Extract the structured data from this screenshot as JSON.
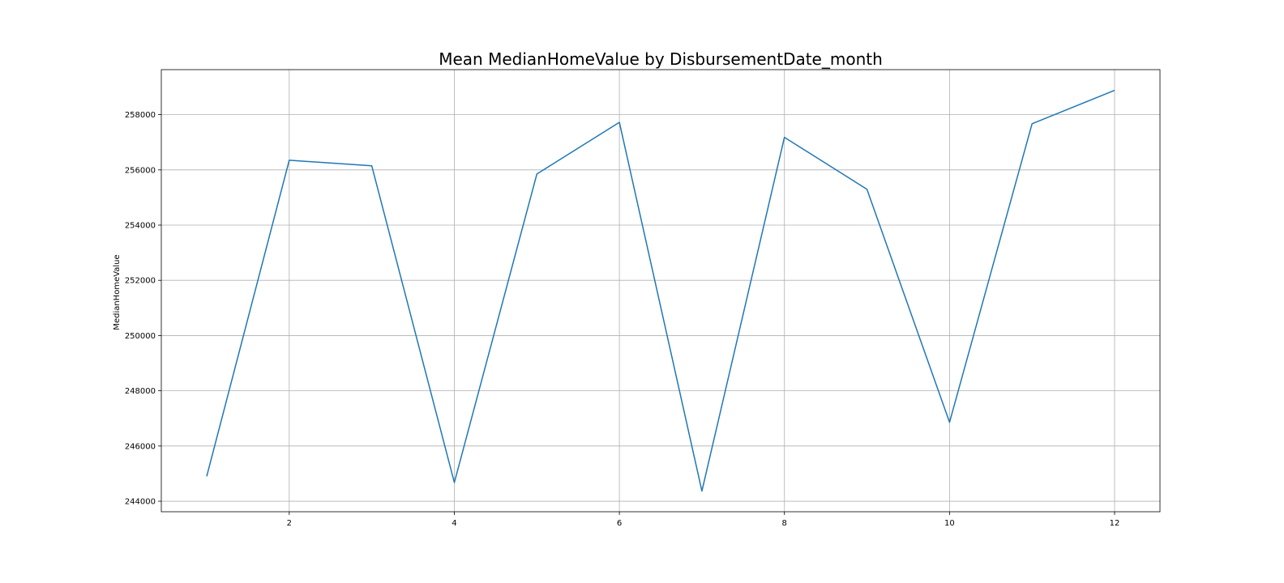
{
  "chart_data": {
    "type": "line",
    "title": "Mean MedianHomeValue by DisbursementDate_month",
    "xlabel": "",
    "ylabel": "MedianHomeValue",
    "x": [
      1,
      2,
      3,
      4,
      5,
      6,
      7,
      8,
      9,
      10,
      11,
      12
    ],
    "series": [
      {
        "values": [
          244900,
          256350,
          256150,
          244680,
          255850,
          257720,
          244370,
          257180,
          255300,
          246860,
          257670,
          258880
        ]
      }
    ],
    "xlim": [
      0.45,
      12.55
    ],
    "ylim": [
      243620,
      259630
    ],
    "xticks": [
      2,
      4,
      6,
      8,
      10,
      12
    ],
    "yticks": [
      244000,
      246000,
      248000,
      250000,
      252000,
      254000,
      256000,
      258000
    ],
    "grid": true,
    "line_color": "#1f77b4"
  }
}
